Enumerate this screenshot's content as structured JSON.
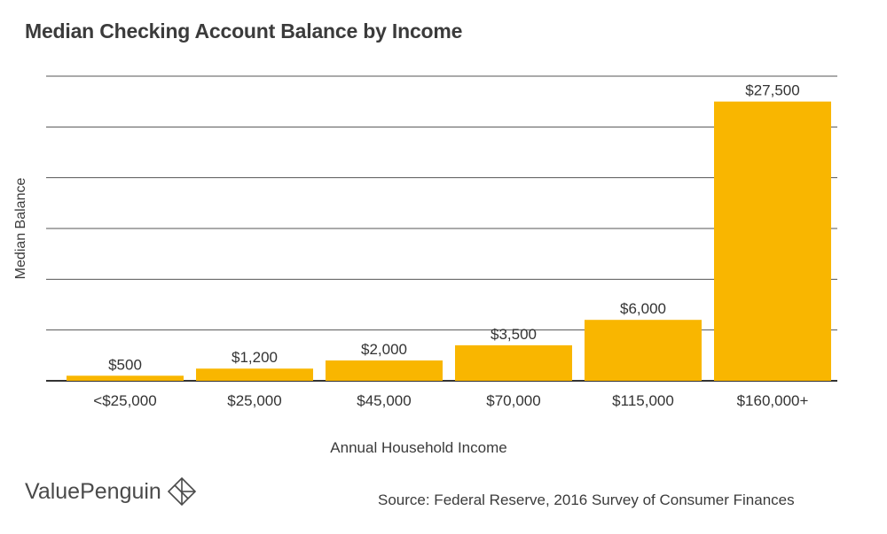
{
  "chart_data": {
    "type": "bar",
    "title": "Median Checking Account Balance by Income",
    "xlabel": "Annual Household Income",
    "ylabel": "Median Balance",
    "categories": [
      "<$25,000",
      "$25,000",
      "$45,000",
      "$70,000",
      "$115,000",
      "$160,000+"
    ],
    "values": [
      500,
      1200,
      2000,
      3500,
      6000,
      27500
    ],
    "value_labels": [
      "$500",
      "$1,200",
      "$2,000",
      "$3,500",
      "$6,000",
      "$27,500"
    ],
    "ylim": [
      0,
      30000
    ],
    "grid": true,
    "bar_color": "#F9B600"
  },
  "footer": {
    "brand": "ValuePenguin",
    "source": "Source: Federal Reserve, 2016 Survey of Consumer Finances"
  }
}
